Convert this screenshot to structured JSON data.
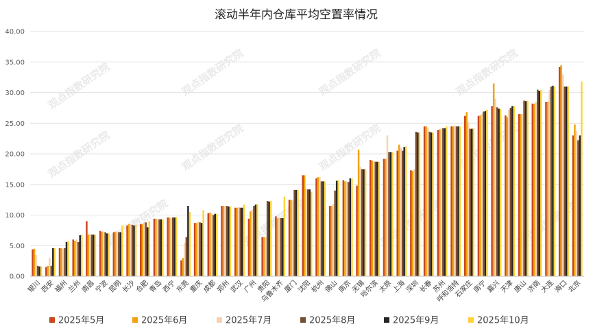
{
  "chart_data": {
    "type": "bar",
    "title": "滚动半年内仓库平均空置率情况",
    "xlabel": "",
    "ylabel": "",
    "ylim": [
      0,
      40
    ],
    "yticks": [
      "0.00",
      "5.00",
      "10.00",
      "15.00",
      "20.00",
      "25.00",
      "30.00",
      "35.00",
      "40.00"
    ],
    "grid": true,
    "legend_position": "bottom",
    "watermark": "观点指数研究院",
    "categories": [
      "银川",
      "西安",
      "福州",
      "兰州",
      "南昌",
      "宁波",
      "昆明",
      "长沙",
      "合肥",
      "青岛",
      "西宁",
      "东莞",
      "重庆",
      "成都",
      "郑州",
      "武汉",
      "广州",
      "贵阳",
      "乌鲁木齐",
      "厦门",
      "沈阳",
      "杭州",
      "佛山",
      "南京",
      "无锡",
      "哈尔滨",
      "太原",
      "上海",
      "深圳",
      "长春",
      "苏州",
      "呼和浩特",
      "石家庄",
      "南宁",
      "嘉兴",
      "天津",
      "唐山",
      "济南",
      "大连",
      "海口",
      "北京"
    ],
    "series": [
      {
        "name": "2025年5月",
        "color": "#C9461E",
        "values": [
          4.4,
          1.5,
          4.6,
          6.0,
          9.0,
          7.4,
          7.2,
          8.3,
          8.5,
          9.4,
          9.6,
          2.6,
          8.7,
          10.3,
          11.5,
          11.2,
          9.4,
          6.4,
          9.8,
          12.5,
          16.5,
          16.0,
          11.5,
          15.7,
          14.8,
          19.0,
          19.2,
          20.5,
          17.3,
          24.5,
          23.9,
          24.5,
          26.2,
          26.2,
          27.8,
          26.3,
          26.5,
          28.2,
          28.5,
          34.2,
          23.0
        ]
      },
      {
        "name": "2025年6月",
        "color": "#F0A30A",
        "values": [
          4.5,
          1.7,
          4.6,
          5.8,
          6.8,
          7.3,
          7.3,
          8.5,
          8.5,
          9.4,
          9.6,
          3.0,
          8.7,
          10.4,
          11.5,
          11.2,
          10.6,
          6.4,
          9.5,
          12.5,
          16.5,
          16.2,
          11.5,
          15.5,
          20.7,
          18.9,
          19.2,
          21.5,
          17.2,
          24.5,
          24.0,
          24.5,
          26.8,
          26.3,
          31.5,
          26.0,
          26.5,
          28.2,
          28.5,
          34.5,
          24.8
        ]
      },
      {
        "name": "2025年7月",
        "color": "#F7D3B0",
        "values": [
          3.5,
          3.0,
          4.5,
          6.0,
          6.9,
          7.3,
          7.2,
          8.5,
          8.8,
          9.3,
          9.5,
          5.5,
          8.9,
          10.3,
          11.5,
          11.3,
          10.9,
          6.4,
          9.6,
          12.4,
          14.3,
          16.2,
          11.8,
          15.5,
          17.9,
          18.8,
          23.0,
          21.0,
          17.5,
          24.3,
          24.2,
          24.6,
          25.2,
          26.5,
          29.0,
          27.2,
          26.5,
          28.5,
          30.4,
          33.0,
          23.8
        ]
      },
      {
        "name": "2025年8月",
        "color": "#7A4E34",
        "values": [
          1.7,
          1.7,
          4.6,
          5.6,
          6.8,
          7.2,
          7.2,
          8.4,
          8.8,
          9.3,
          9.6,
          6.4,
          8.8,
          10.0,
          11.5,
          11.2,
          11.5,
          12.3,
          9.5,
          14.1,
          14.2,
          15.5,
          14.0,
          15.4,
          17.5,
          18.7,
          20.3,
          20.5,
          23.6,
          23.6,
          24.2,
          24.5,
          24.1,
          26.9,
          27.6,
          27.5,
          28.7,
          30.5,
          31.0,
          31.0,
          22.2
        ]
      },
      {
        "name": "2025年9月",
        "color": "#262626",
        "values": [
          1.6,
          4.6,
          5.6,
          6.7,
          6.8,
          7.0,
          7.2,
          8.3,
          8.0,
          9.3,
          9.6,
          11.5,
          8.7,
          10.2,
          11.4,
          11.2,
          11.7,
          12.2,
          9.5,
          14.1,
          14.2,
          15.5,
          15.6,
          16.0,
          17.5,
          18.7,
          20.3,
          21.1,
          23.5,
          23.5,
          24.2,
          24.5,
          24.1,
          27.0,
          27.4,
          27.8,
          28.6,
          30.3,
          31.1,
          31.0,
          23.0
        ]
      },
      {
        "name": "2025年10月",
        "color": "#FFD43B",
        "values": [
          1.6,
          4.6,
          5.7,
          6.8,
          6.8,
          7.0,
          8.3,
          8.4,
          9.0,
          9.3,
          9.7,
          10.5,
          10.8,
          10.2,
          11.4,
          11.7,
          11.8,
          12.3,
          13.0,
          14.1,
          13.8,
          15.5,
          15.7,
          16.0,
          17.5,
          18.7,
          20.3,
          21.2,
          23.5,
          23.5,
          24.5,
          24.5,
          24.2,
          27.2,
          27.3,
          27.8,
          28.7,
          30.4,
          31.0,
          31.0,
          31.8
        ]
      }
    ]
  }
}
